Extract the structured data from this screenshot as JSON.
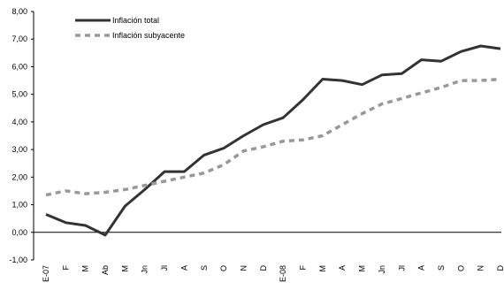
{
  "chart_data": {
    "type": "line",
    "categories": [
      "E-07",
      "F",
      "M",
      "Ab",
      "M",
      "Jn",
      "Jl",
      "A",
      "S",
      "O",
      "N",
      "D",
      "E-08",
      "F",
      "M",
      "A",
      "M",
      "Jn",
      "Jl",
      "A",
      "S",
      "O",
      "N",
      "D"
    ],
    "yticks": [
      "-1,00",
      "0,00",
      "1,00",
      "2,00",
      "3,00",
      "4,00",
      "5,00",
      "6,00",
      "7,00",
      "8,00"
    ],
    "ylim": [
      -1,
      8
    ],
    "grid": false,
    "legend_position": "top-left",
    "series": [
      {
        "name": "Inflación total",
        "style": "solid",
        "color": "#333333",
        "values": [
          0.65,
          0.35,
          0.25,
          -0.1,
          0.95,
          1.55,
          2.2,
          2.2,
          2.8,
          3.05,
          3.5,
          3.9,
          4.15,
          4.8,
          5.55,
          5.5,
          5.35,
          5.7,
          5.75,
          6.25,
          6.2,
          6.55,
          6.75,
          6.65
        ]
      },
      {
        "name": "Inflación subyacente",
        "style": "dashed",
        "color": "#999999",
        "values": [
          1.35,
          1.5,
          1.4,
          1.45,
          1.55,
          1.7,
          1.85,
          2.0,
          2.15,
          2.45,
          2.95,
          3.1,
          3.3,
          3.35,
          3.5,
          3.9,
          4.3,
          4.65,
          4.85,
          5.05,
          5.25,
          5.5,
          5.5,
          5.55
        ]
      }
    ]
  }
}
